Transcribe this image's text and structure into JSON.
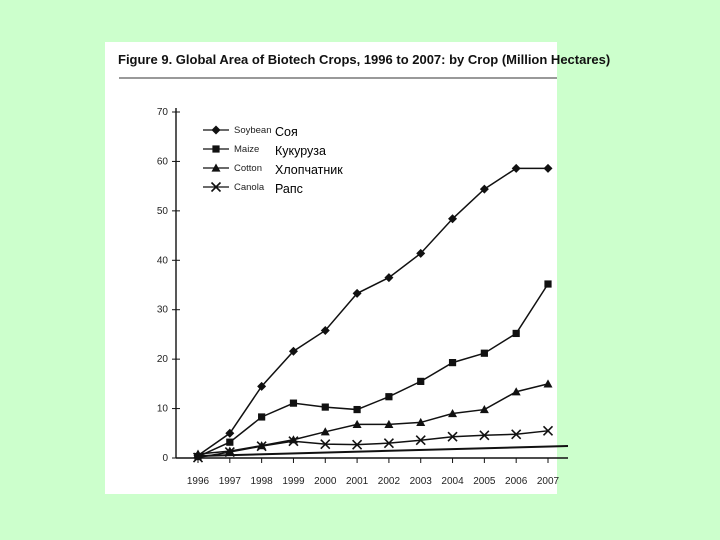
{
  "background_color": "#ccffcc",
  "chart_data": {
    "type": "line",
    "title": "Figure 9. Global Area of Biotech Crops, 1996 to 2007: by Crop (Million Hectares)",
    "categories": [
      "1996",
      "1997",
      "1998",
      "1999",
      "2000",
      "2001",
      "2002",
      "2003",
      "2004",
      "2005",
      "2006",
      "2007"
    ],
    "y_ticks": [
      "0",
      "10",
      "20",
      "30",
      "40",
      "50",
      "60",
      "70"
    ],
    "ylim": [
      0,
      70
    ],
    "grid": false,
    "legend_position": "top-left",
    "series": [
      {
        "name": "Soybean",
        "label_ru": "Соя",
        "marker": "diamond",
        "values": [
          0.5,
          5,
          14.5,
          21.6,
          25.8,
          33.3,
          36.5,
          41.4,
          48.4,
          54.4,
          58.6,
          58.6
        ]
      },
      {
        "name": "Maize",
        "label_ru": "Кукуруза",
        "marker": "square",
        "values": [
          0.3,
          3.2,
          8.3,
          11.1,
          10.3,
          9.8,
          12.4,
          15.5,
          19.3,
          21.2,
          25.2,
          35.2
        ]
      },
      {
        "name": "Cotton",
        "label_ru": "Хлопчатник",
        "marker": "triangle",
        "values": [
          0.8,
          1.4,
          2.5,
          3.7,
          5.3,
          6.8,
          6.8,
          7.2,
          9.0,
          9.8,
          13.4,
          15.0
        ]
      },
      {
        "name": "Canola",
        "label_ru": "Рапс",
        "marker": "x",
        "values": [
          0.1,
          1.2,
          2.4,
          3.4,
          2.8,
          2.7,
          3.0,
          3.6,
          4.3,
          4.6,
          4.8,
          5.5
        ]
      }
    ]
  }
}
